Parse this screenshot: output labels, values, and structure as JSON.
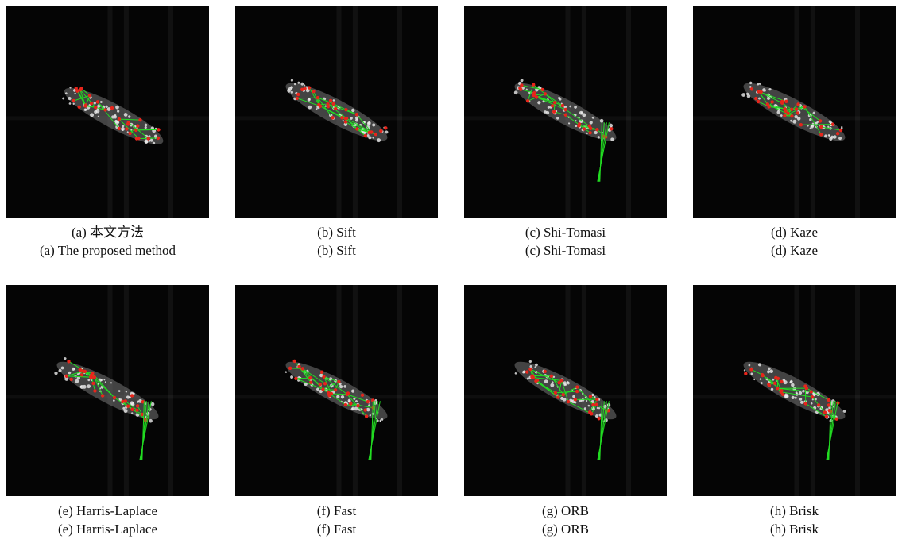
{
  "panels": [
    {
      "caption_line1": "(a) 本文方法",
      "caption_line2": "(a) The proposed method"
    },
    {
      "caption_line1": "(b) Sift",
      "caption_line2": "(b) Sift"
    },
    {
      "caption_line1": "(c) Shi-Tomasi",
      "caption_line2": "(c) Shi-Tomasi"
    },
    {
      "caption_line1": "(d) Kaze",
      "caption_line2": "(d) Kaze"
    },
    {
      "caption_line1": "(e) Harris-Laplace",
      "caption_line2": "(e) Harris-Laplace"
    },
    {
      "caption_line1": "(f) Fast",
      "caption_line2": "(f) Fast"
    },
    {
      "caption_line1": "(g) ORB",
      "caption_line2": "(g) ORB"
    },
    {
      "caption_line1": "(h) Brisk",
      "caption_line2": "(h) Brisk"
    }
  ]
}
